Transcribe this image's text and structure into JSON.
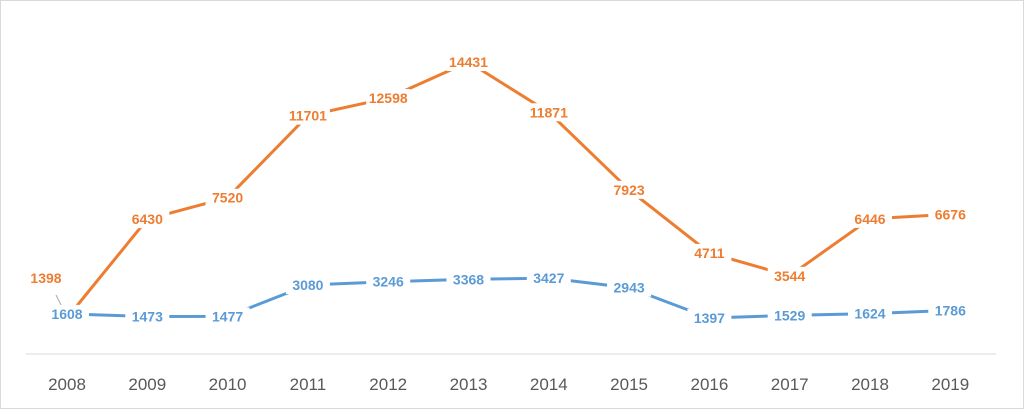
{
  "chart_data": {
    "type": "line",
    "categories": [
      "2008",
      "2009",
      "2010",
      "2011",
      "2012",
      "2013",
      "2014",
      "2015",
      "2016",
      "2017",
      "2018",
      "2019"
    ],
    "series": [
      {
        "values": [
          1398,
          6430,
          7520,
          11701,
          12598,
          14431,
          11871,
          7923,
          4711,
          3544,
          6446,
          6676
        ],
        "color": "#ED7D31"
      },
      {
        "values": [
          1608,
          1473,
          1477,
          3080,
          3246,
          3368,
          3427,
          2943,
          1397,
          1529,
          1624,
          1786
        ],
        "color": "#5B9BD5"
      }
    ],
    "title": "",
    "xlabel": "",
    "ylabel": "",
    "ylim": [
      0,
      16000
    ],
    "y_axis_visible": false,
    "grid": false,
    "legend": "none",
    "data_labels": true
  }
}
